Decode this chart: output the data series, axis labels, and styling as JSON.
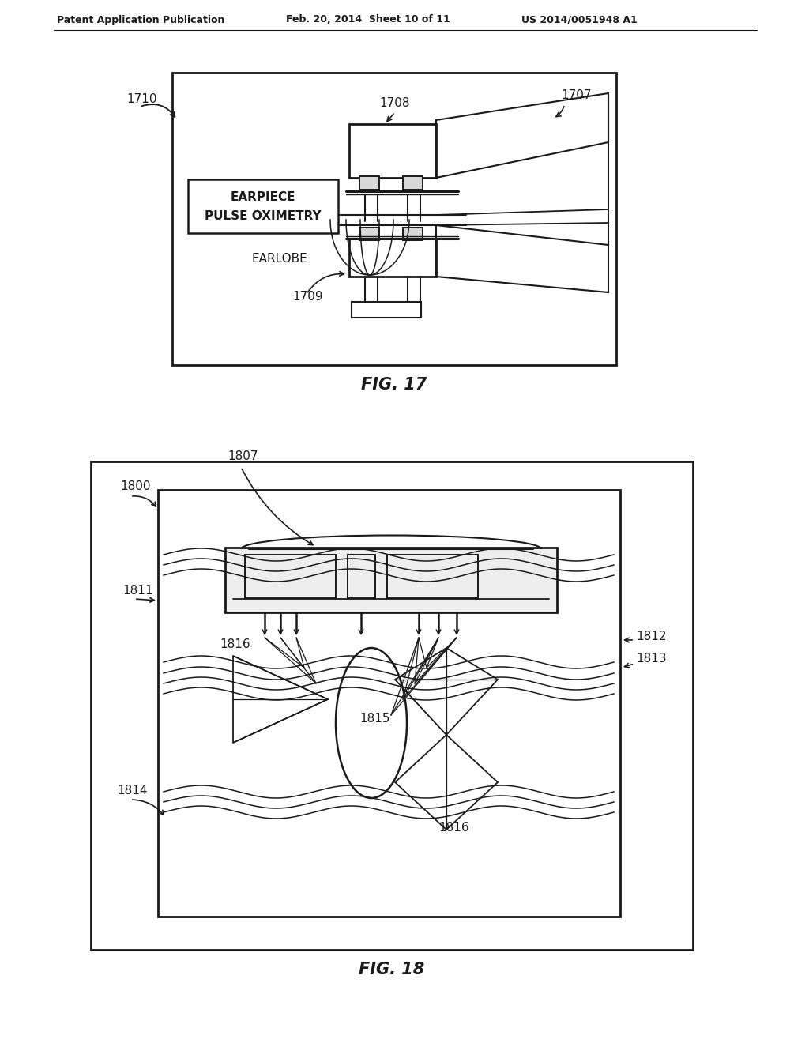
{
  "bg_color": "#ffffff",
  "line_color": "#1a1a1a",
  "header_text": "Patent Application Publication",
  "header_date": "Feb. 20, 2014  Sheet 10 of 11",
  "header_patent": "US 2014/0051948 A1",
  "fig17_caption": "FIG. 17",
  "fig18_caption": "FIG. 18"
}
